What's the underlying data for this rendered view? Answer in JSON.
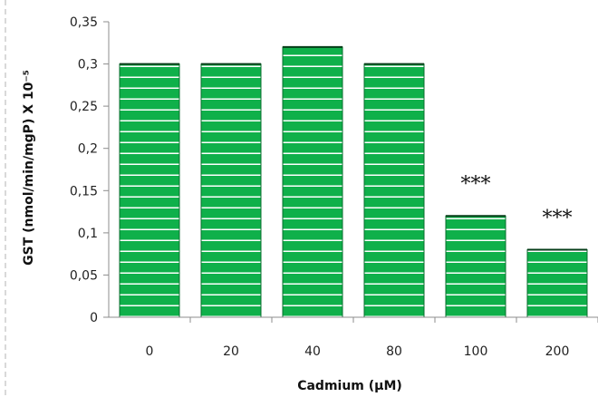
{
  "chart_data": {
    "type": "bar",
    "categories": [
      "0",
      "20",
      "40",
      "80",
      "100",
      "200"
    ],
    "values": [
      0.3,
      0.3,
      0.32,
      0.3,
      0.12,
      0.08
    ],
    "xlabel": "Cadmium (µM)",
    "ylabel": "GST (nmol/min/mgP) X 10⁻⁵",
    "ylim": [
      0,
      0.35
    ],
    "yticks": [
      {
        "value": 0,
        "label": "0"
      },
      {
        "value": 0.05,
        "label": "0,05"
      },
      {
        "value": 0.1,
        "label": "0,1"
      },
      {
        "value": 0.15,
        "label": "0,15"
      },
      {
        "value": 0.2,
        "label": "0,2"
      },
      {
        "value": 0.25,
        "label": "0,25"
      },
      {
        "value": 0.3,
        "label": "0,3"
      },
      {
        "value": 0.35,
        "label": "0,35"
      }
    ],
    "annotations": [
      {
        "category": "100",
        "text": "***"
      },
      {
        "category": "200",
        "text": "***"
      }
    ],
    "grid": false,
    "legend": "none",
    "colors": {
      "bar_fill": "#0fb04a",
      "bar_stripe": "#ffffff",
      "bar_edge": "#0a6e2e",
      "axis": "#8c8c8c",
      "frame": "#b3b3b3"
    }
  }
}
